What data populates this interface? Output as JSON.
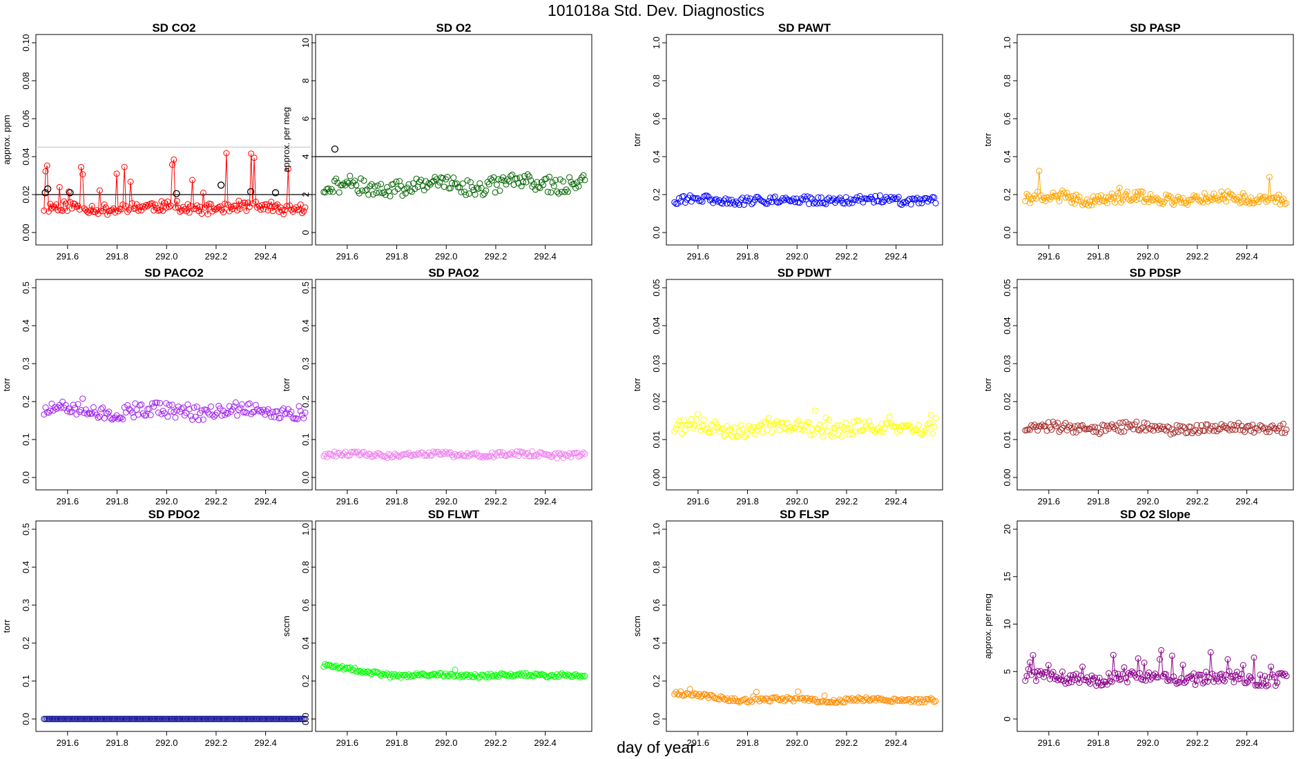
{
  "page": {
    "title": "101018a   Std. Dev. Diagnostics",
    "xlabel": "day of year"
  },
  "chart_data": [
    {
      "type": "line",
      "title": "SD CO2",
      "ylabel": "approx. ppm",
      "xlim": [
        291.5,
        292.56
      ],
      "ylim": [
        0,
        0.1
      ],
      "yticks": [
        0.0,
        0.02,
        0.04,
        0.06,
        0.08,
        0.1
      ],
      "ytick_labels": [
        "0.00",
        "0.02",
        "0.04",
        "0.06",
        "0.08",
        "0.10"
      ],
      "xticks": [
        291.6,
        291.8,
        292.0,
        292.2,
        292.4
      ],
      "xtick_labels": [
        "291.6",
        "291.8",
        "292.0",
        "292.2",
        "292.4"
      ],
      "color": "#ff0000",
      "mode": "line+points",
      "base": 0.013,
      "noise": 0.002,
      "spike_prob": 0.12,
      "spike_max": 0.028,
      "seed": 11,
      "hlines": [
        {
          "y": 0.02,
          "color": "#000000"
        },
        {
          "y": 0.045,
          "color": "#cccccc"
        }
      ],
      "highlight": [
        [
          291.51,
          0.021
        ],
        [
          291.52,
          0.023
        ],
        [
          291.61,
          0.021
        ],
        [
          292.04,
          0.0205
        ],
        [
          292.22,
          0.025
        ],
        [
          292.34,
          0.0215
        ],
        [
          292.44,
          0.021
        ]
      ],
      "highlight_color": "#000000"
    },
    {
      "type": "line",
      "title": "SD O2",
      "ylabel": "approx. per meg",
      "xlim": [
        291.5,
        292.56
      ],
      "ylim": [
        0,
        10
      ],
      "yticks": [
        0,
        2,
        4,
        6,
        8,
        10
      ],
      "ytick_labels": [
        "0",
        "2",
        "4",
        "6",
        "8",
        "10"
      ],
      "xticks": [
        291.6,
        291.8,
        292.0,
        292.2,
        292.4
      ],
      "xtick_labels": [
        "291.6",
        "291.8",
        "292.0",
        "292.2",
        "292.4"
      ],
      "color": "#006400",
      "mode": "points",
      "base": 2.5,
      "noise": 0.3,
      "spike_prob": 0.02,
      "spike_max": 1.0,
      "seed": 21,
      "trend": 0.3,
      "hlines": [
        {
          "y": 4,
          "color": "#000000"
        }
      ],
      "highlight": [
        [
          291.55,
          4.4
        ]
      ],
      "highlight_color": "#000000"
    },
    {
      "type": "scatter",
      "title": "SD PAWT",
      "ylabel": "torr",
      "xlim": [
        291.5,
        292.56
      ],
      "ylim": [
        0,
        1
      ],
      "yticks": [
        0,
        0.2,
        0.4,
        0.6,
        0.8,
        1.0
      ],
      "ytick_labels": [
        "0.0",
        "0.2",
        "0.4",
        "0.6",
        "0.8",
        "1.0"
      ],
      "xticks": [
        291.6,
        291.8,
        292.0,
        292.2,
        292.4
      ],
      "xtick_labels": [
        "291.6",
        "291.8",
        "292.0",
        "292.2",
        "292.4"
      ],
      "color": "#0000ff",
      "mode": "points",
      "base": 0.17,
      "noise": 0.015,
      "spike_prob": 0,
      "spike_max": 0,
      "seed": 31
    },
    {
      "type": "scatter",
      "title": "SD PASP",
      "ylabel": "torr",
      "xlim": [
        291.5,
        292.56
      ],
      "ylim": [
        0,
        1
      ],
      "yticks": [
        0,
        0.2,
        0.4,
        0.6,
        0.8,
        1.0
      ],
      "ytick_labels": [
        "0.0",
        "0.2",
        "0.4",
        "0.6",
        "0.8",
        "1.0"
      ],
      "xticks": [
        291.6,
        291.8,
        292.0,
        292.2,
        292.4
      ],
      "xtick_labels": [
        "291.6",
        "291.8",
        "292.0",
        "292.2",
        "292.4"
      ],
      "color": "#ffa500",
      "mode": "line+points",
      "base": 0.18,
      "noise": 0.02,
      "spike_prob": 0.08,
      "spike_max": 0.15,
      "seed": 41
    },
    {
      "type": "scatter",
      "title": "SD PACO2",
      "ylabel": "torr",
      "xlim": [
        291.5,
        292.56
      ],
      "ylim": [
        0,
        0.5
      ],
      "yticks": [
        0,
        0.1,
        0.2,
        0.3,
        0.4,
        0.5
      ],
      "ytick_labels": [
        "0.0",
        "0.1",
        "0.2",
        "0.3",
        "0.4",
        "0.5"
      ],
      "xticks": [
        291.6,
        291.8,
        292.0,
        292.2,
        292.4
      ],
      "xtick_labels": [
        "291.6",
        "291.8",
        "292.0",
        "292.2",
        "292.4"
      ],
      "color": "#a020f0",
      "mode": "points",
      "base": 0.175,
      "noise": 0.013,
      "spike_prob": 0.02,
      "spike_max": 0.03,
      "seed": 51
    },
    {
      "type": "scatter",
      "title": "SD PAO2",
      "ylabel": "torr",
      "xlim": [
        291.5,
        292.56
      ],
      "ylim": [
        0,
        0.5
      ],
      "yticks": [
        0,
        0.1,
        0.2,
        0.3,
        0.4,
        0.5
      ],
      "ytick_labels": [
        "0.0",
        "0.1",
        "0.2",
        "0.3",
        "0.4",
        "0.5"
      ],
      "xticks": [
        291.6,
        291.8,
        292.0,
        292.2,
        292.4
      ],
      "xtick_labels": [
        "291.6",
        "291.8",
        "292.0",
        "292.2",
        "292.4"
      ],
      "color": "#ee82ee",
      "mode": "points",
      "base": 0.06,
      "noise": 0.005,
      "spike_prob": 0,
      "spike_max": 0,
      "seed": 61
    },
    {
      "type": "scatter",
      "title": "SD PDWT",
      "ylabel": "torr",
      "xlim": [
        291.5,
        292.56
      ],
      "ylim": [
        0,
        0.05
      ],
      "yticks": [
        0,
        0.01,
        0.02,
        0.03,
        0.04,
        0.05
      ],
      "ytick_labels": [
        "0.00",
        "0.01",
        "0.02",
        "0.03",
        "0.04",
        "0.05"
      ],
      "xticks": [
        291.6,
        291.8,
        292.0,
        292.2,
        292.4
      ],
      "xtick_labels": [
        "291.6",
        "291.8",
        "292.0",
        "292.2",
        "292.4"
      ],
      "color": "#ffff00",
      "mode": "points",
      "base": 0.013,
      "noise": 0.0013,
      "spike_prob": 0.04,
      "spike_max": 0.006,
      "seed": 71
    },
    {
      "type": "scatter",
      "title": "SD PDSP",
      "ylabel": "torr",
      "xlim": [
        291.5,
        292.56
      ],
      "ylim": [
        0,
        0.05
      ],
      "yticks": [
        0,
        0.01,
        0.02,
        0.03,
        0.04,
        0.05
      ],
      "ytick_labels": [
        "0.00",
        "0.01",
        "0.02",
        "0.03",
        "0.04",
        "0.05"
      ],
      "xticks": [
        291.6,
        291.8,
        292.0,
        292.2,
        292.4
      ],
      "xtick_labels": [
        "291.6",
        "291.8",
        "292.0",
        "292.2",
        "292.4"
      ],
      "color": "#a52a2a",
      "mode": "points",
      "base": 0.013,
      "noise": 0.0009,
      "spike_prob": 0.01,
      "spike_max": 0.003,
      "seed": 81
    },
    {
      "type": "scatter",
      "title": "SD PDO2",
      "ylabel": "torr",
      "xlim": [
        291.5,
        292.56
      ],
      "ylim": [
        0,
        0.5
      ],
      "yticks": [
        0,
        0.1,
        0.2,
        0.3,
        0.4,
        0.5
      ],
      "ytick_labels": [
        "0.0",
        "0.1",
        "0.2",
        "0.3",
        "0.4",
        "0.5"
      ],
      "xticks": [
        291.6,
        291.8,
        292.0,
        292.2,
        292.4
      ],
      "xtick_labels": [
        "291.6",
        "291.8",
        "292.0",
        "292.2",
        "292.4"
      ],
      "color": "#00008b",
      "mode": "points",
      "base": 0.0,
      "noise": 0,
      "spike_prob": 0,
      "spike_max": 0,
      "seed": 91
    },
    {
      "type": "scatter",
      "title": "SD FLWT",
      "ylabel": "sccm",
      "xlim": [
        291.5,
        292.56
      ],
      "ylim": [
        0,
        1
      ],
      "yticks": [
        0,
        0.2,
        0.4,
        0.6,
        0.8,
        1.0
      ],
      "ytick_labels": [
        "0.0",
        "0.2",
        "0.4",
        "0.6",
        "0.8",
        "1.0"
      ],
      "xticks": [
        291.6,
        291.8,
        292.0,
        292.2,
        292.4
      ],
      "xtick_labels": [
        "291.6",
        "291.8",
        "292.0",
        "292.2",
        "292.4"
      ],
      "color": "#00ff00",
      "mode": "points",
      "base": 0.23,
      "noise": 0.007,
      "spike_prob": 0.02,
      "spike_max": 0.03,
      "seed": 101,
      "start_boost": 0.05
    },
    {
      "type": "scatter",
      "title": "SD FLSP",
      "ylabel": "sccm",
      "xlim": [
        291.5,
        292.56
      ],
      "ylim": [
        0,
        1
      ],
      "yticks": [
        0,
        0.2,
        0.4,
        0.6,
        0.8,
        1.0
      ],
      "ytick_labels": [
        "0.0",
        "0.2",
        "0.4",
        "0.6",
        "0.8",
        "1.0"
      ],
      "xticks": [
        291.6,
        291.8,
        292.0,
        292.2,
        292.4
      ],
      "xtick_labels": [
        "291.6",
        "291.8",
        "292.0",
        "292.2",
        "292.4"
      ],
      "color": "#ff8c00",
      "mode": "points",
      "base": 0.1,
      "noise": 0.008,
      "spike_prob": 0.03,
      "spike_max": 0.04,
      "seed": 111,
      "start_boost": 0.035
    },
    {
      "type": "line",
      "title": "SD O2 Slope",
      "ylabel": "approx. per meg",
      "xlim": [
        291.5,
        292.56
      ],
      "ylim": [
        0,
        20
      ],
      "yticks": [
        0,
        5,
        10,
        15,
        20
      ],
      "ytick_labels": [
        "0",
        "5",
        "10",
        "15",
        "20"
      ],
      "xticks": [
        291.6,
        291.8,
        292.0,
        292.2,
        292.4
      ],
      "xtick_labels": [
        "291.6",
        "291.8",
        "292.0",
        "292.2",
        "292.4"
      ],
      "color": "#8b008b",
      "mode": "line+points",
      "base": 4.3,
      "noise": 0.45,
      "spike_prob": 0.1,
      "spike_max": 3.0,
      "seed": 121
    }
  ]
}
